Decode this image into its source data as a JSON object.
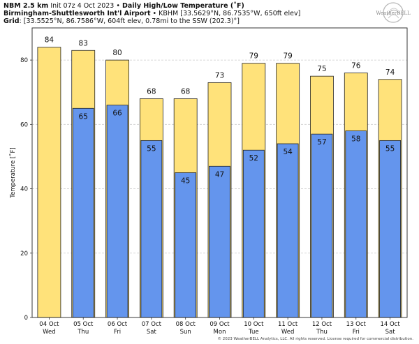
{
  "header": {
    "model": "NBM 2.5 km",
    "init": "Init 07z 4 Oct 2023",
    "sep": "•",
    "title": "Daily High/Low Temperature (˚F)",
    "station": "Birmingham-Shuttlesworth Int'l Airport",
    "station_info": "KBHM [33.5629°N, 86.7535°W, 650ft elev]",
    "grid_label": "Grid",
    "grid_info": "[33.5525°N, 86.7586°W, 604ft elev, 0.78mi to the SSW (202.3)°]"
  },
  "logo": {
    "text": "WeatherBELL"
  },
  "footer": {
    "text": "© 2023 WeatherBELL Analytics, LLC. All rights reserved. License required for commercial distribution."
  },
  "colors": {
    "high": "#FFE27A",
    "low": "#6495ED",
    "bar_edge": "#222222",
    "grid": "#cccccc"
  },
  "chart_data": {
    "type": "bar",
    "ylabel": "Temperature [˚F]",
    "ylim": [
      0,
      90
    ],
    "yticks": [
      0,
      20,
      40,
      60,
      80
    ],
    "grid": "horizontal dashed",
    "categories": [
      {
        "date": "04 Oct",
        "day": "Wed"
      },
      {
        "date": "05 Oct",
        "day": "Thu"
      },
      {
        "date": "06 Oct",
        "day": "Fri"
      },
      {
        "date": "07 Oct",
        "day": "Sat"
      },
      {
        "date": "08 Oct",
        "day": "Sun"
      },
      {
        "date": "09 Oct",
        "day": "Mon"
      },
      {
        "date": "10 Oct",
        "day": "Tue"
      },
      {
        "date": "11 Oct",
        "day": "Wed"
      },
      {
        "date": "12 Oct",
        "day": "Thu"
      },
      {
        "date": "13 Oct",
        "day": "Fri"
      },
      {
        "date": "14 Oct",
        "day": "Sat"
      }
    ],
    "series": [
      {
        "key": "high",
        "values": [
          84,
          83,
          80,
          68,
          68,
          73,
          79,
          79,
          75,
          76,
          74
        ]
      },
      {
        "key": "low",
        "values": [
          null,
          65,
          66,
          55,
          45,
          47,
          52,
          54,
          57,
          58,
          55
        ]
      }
    ]
  }
}
